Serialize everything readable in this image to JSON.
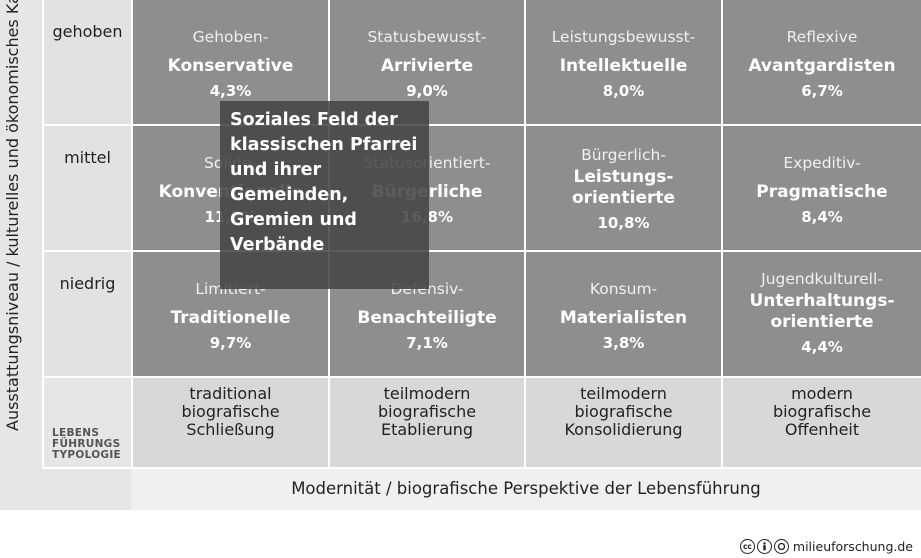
{
  "y_axis_label": "Ausstattungsniveau / kulturelles und ökonomisches Kapital",
  "x_axis_label": "Modernität / biografische Perspektive der Lebensführung",
  "row_labels": [
    "gehoben",
    "mittel",
    "niedrig"
  ],
  "cells": [
    [
      {
        "line1": "Gehoben-",
        "name": "Konservative",
        "pct": "4,3%"
      },
      {
        "line1": "Statusbewusst-",
        "name": "Arrivierte",
        "pct": "9,0%"
      },
      {
        "line1": "Leistungsbewusst-",
        "name": "Intellektuelle",
        "pct": "8,0%"
      },
      {
        "line1": "Reflexive",
        "name": "Avantgardisten",
        "pct": "6,7%"
      }
    ],
    [
      {
        "line1": "Solide-",
        "name": "Konventionelle",
        "pct": "11,7%"
      },
      {
        "line1": "Statusorientiert-",
        "name": "Bürgerliche",
        "pct": "16,8%"
      },
      {
        "line1": "Bürgerlich-",
        "name": "Leistungs-",
        "name2": "orientierte",
        "pct": "10,8%"
      },
      {
        "line1": "Expeditiv-",
        "name": "Pragmatische",
        "pct": "8,4%"
      }
    ],
    [
      {
        "line1": "Limitiert-",
        "name": "Traditionelle",
        "pct": "9,7%"
      },
      {
        "line1": "Defensiv-",
        "name": "Benachteiligte",
        "pct": "7,1%"
      },
      {
        "line1": "Konsum-",
        "name": "Materialisten",
        "pct": "3,8%"
      },
      {
        "line1": "Jugendkulturell-",
        "name": "Unterhaltungs-",
        "name2": "orientierte",
        "pct": "4,4%"
      }
    ]
  ],
  "typology_label": [
    "LEBENS",
    "FÜHRUNGS",
    "TYPOLOGIE"
  ],
  "typologies": [
    [
      "traditional",
      "biografische",
      "Schließung"
    ],
    [
      "teilmodern",
      "biografische",
      "Etablierung"
    ],
    [
      "teilmodern",
      "biografische",
      "Konsolidierung"
    ],
    [
      "modern",
      "biografische",
      "Offenheit"
    ]
  ],
  "overlay_text": [
    "Soziales Feld der",
    "klassischen Pfarrei",
    "und ihrer",
    "Gemeinden,",
    "Gremien und",
    "Verbände"
  ],
  "credit": "milieuforschung.de",
  "license_icons": [
    "cc-icon",
    "by-icon",
    "nd-icon"
  ]
}
